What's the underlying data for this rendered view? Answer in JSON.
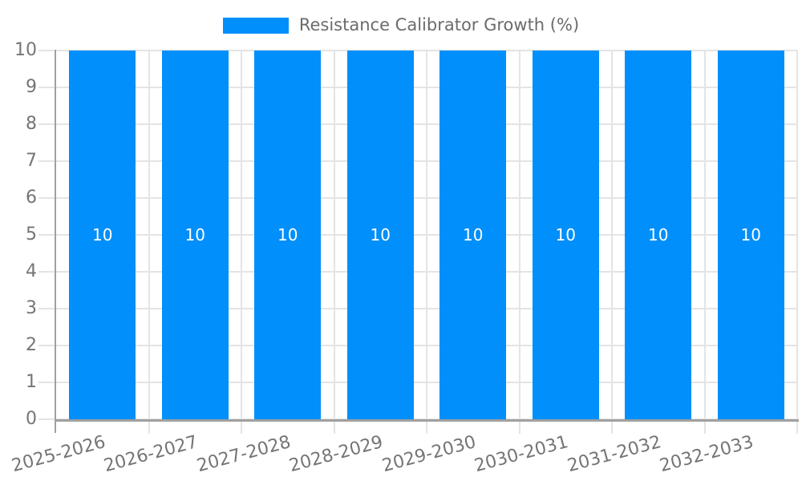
{
  "chart_data": {
    "type": "bar",
    "title": "",
    "legend": {
      "position": "top",
      "items": [
        {
          "label": "Resistance Calibrator Growth (%)",
          "color": "#008FFB"
        }
      ]
    },
    "categories": [
      "2025-2026",
      "2026-2027",
      "2027-2028",
      "2028-2029",
      "2029-2030",
      "2030-2031",
      "2031-2032",
      "2032-2033"
    ],
    "series": [
      {
        "name": "Resistance Calibrator Growth (%)",
        "values": [
          10,
          10,
          10,
          10,
          10,
          10,
          10,
          10
        ],
        "data_labels": [
          "10",
          "10",
          "10",
          "10",
          "10",
          "10",
          "10",
          "10"
        ]
      }
    ],
    "xlabel": "",
    "ylabel": "",
    "ylim": [
      0,
      10
    ],
    "yticks": [
      "0",
      "1",
      "2",
      "3",
      "4",
      "5",
      "6",
      "7",
      "8",
      "9",
      "10"
    ],
    "grid": "on",
    "x_label_rotation_deg": -15,
    "colors": {
      "bar": "#008FFB",
      "data_label_text": "#ffffff",
      "axis_label_text": "#757575",
      "legend_text": "#6b6b6b",
      "gridline": "#e4e4e4",
      "axis_line": "#a0a0a0"
    }
  }
}
